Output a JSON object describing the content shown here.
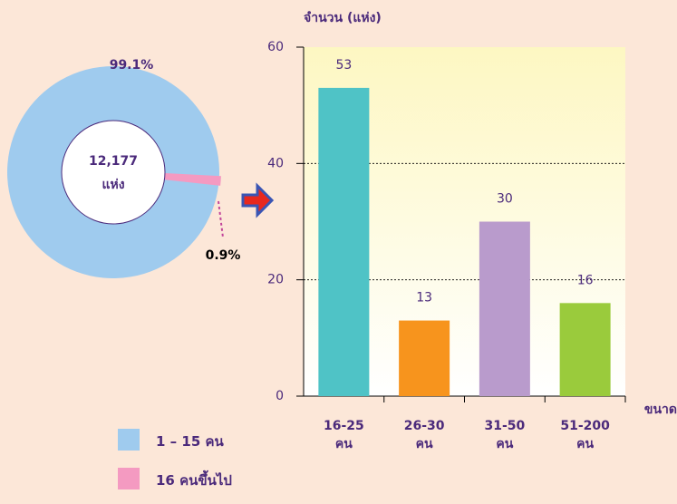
{
  "chart_data": [
    {
      "type": "pie",
      "center_text": [
        "12,177",
        "แห่ง"
      ],
      "series": [
        {
          "name": "1 – 15 คน",
          "color": "#9fcbee",
          "values": [
            99.1
          ],
          "value_labels": [
            "99.1%"
          ]
        },
        {
          "name": "16 คนขึ้นไป",
          "color": "#f49ac1",
          "values": [
            0.9
          ],
          "value_labels": [
            "0.9%"
          ]
        }
      ]
    },
    {
      "type": "bar",
      "y_label": "จำนวน (แห่ง)",
      "x_label": "ขนาด",
      "categories": [
        "16-25 คน",
        "26-30 คน",
        "31-50 คน",
        "51-200 คน"
      ],
      "values": [
        53,
        13,
        30,
        16
      ],
      "colors": [
        "#4fc3c6",
        "#f7941d",
        "#b99bcc",
        "#9acb3c"
      ],
      "ylim": [
        0,
        60
      ],
      "yticks": [
        0,
        20,
        40,
        60
      ],
      "grid": true
    }
  ]
}
